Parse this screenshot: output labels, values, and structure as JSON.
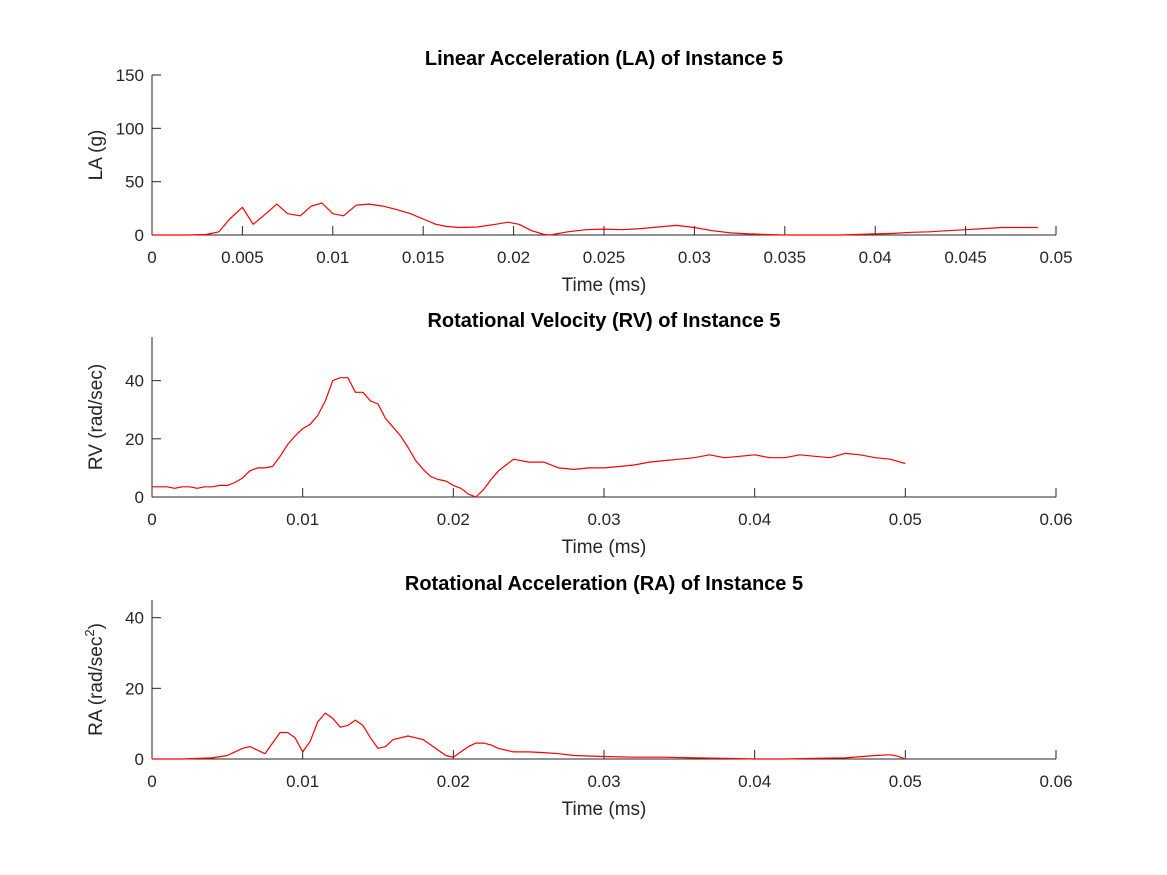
{
  "chart_data": [
    {
      "type": "line",
      "title": "Linear Acceleration (LA) of Instance 5",
      "xlabel": "Time (ms)",
      "ylabel": "LA (g)",
      "xlim": [
        0,
        0.05
      ],
      "ylim": [
        0,
        150
      ],
      "xticks": [
        0,
        0.005,
        0.01,
        0.015,
        0.02,
        0.025,
        0.03,
        0.035,
        0.04,
        0.045,
        0.05
      ],
      "xtick_labels": [
        "0",
        "0.005",
        "0.01",
        "0.015",
        "0.02",
        "0.025",
        "0.03",
        "0.035",
        "0.04",
        "0.045",
        "0.05"
      ],
      "yticks": [
        0,
        50,
        100,
        150
      ],
      "ytick_labels": [
        "0",
        "50",
        "100",
        "150"
      ],
      "color": "#ff0000",
      "series": [
        {
          "x": [
            0,
            0.002,
            0.003,
            0.0037,
            0.0043,
            0.005,
            0.0056,
            0.0063,
            0.0069,
            0.0075,
            0.0082,
            0.0088,
            0.0094,
            0.01,
            0.0106,
            0.0113,
            0.012,
            0.0128,
            0.0135,
            0.0143,
            0.015,
            0.0157,
            0.0163,
            0.017,
            0.018,
            0.019,
            0.0197,
            0.0203,
            0.021,
            0.0217,
            0.022,
            0.023,
            0.024,
            0.025,
            0.026,
            0.027,
            0.028,
            0.029,
            0.03,
            0.031,
            0.032,
            0.033,
            0.034,
            0.035,
            0.036,
            0.037,
            0.038,
            0.039,
            0.04,
            0.041,
            0.042,
            0.043,
            0.044,
            0.045,
            0.046,
            0.047,
            0.048,
            0.049
          ],
          "y": [
            0,
            0,
            0.5,
            3,
            15,
            26,
            10,
            20,
            29,
            20,
            18,
            27,
            30,
            20,
            18,
            28,
            29,
            27,
            24,
            20,
            15,
            10,
            8,
            7,
            7.5,
            10,
            12,
            10,
            4,
            0.5,
            0,
            3,
            5,
            5.5,
            5,
            6,
            7.5,
            9,
            7,
            4,
            2,
            1,
            0.5,
            0,
            0,
            0,
            0,
            0.5,
            1,
            1.5,
            2.5,
            3,
            4,
            5,
            6,
            7,
            7,
            7
          ]
        }
      ]
    },
    {
      "type": "line",
      "title": "Rotational Velocity (RV) of Instance 5",
      "xlabel": "Time (ms)",
      "ylabel": "RV (rad/sec)",
      "xlim": [
        0,
        0.06
      ],
      "ylim": [
        0,
        55
      ],
      "xticks": [
        0,
        0.01,
        0.02,
        0.03,
        0.04,
        0.05,
        0.06
      ],
      "xtick_labels": [
        "0",
        "0.01",
        "0.02",
        "0.03",
        "0.04",
        "0.05",
        "0.06"
      ],
      "yticks": [
        0,
        20,
        40
      ],
      "ytick_labels": [
        "0",
        "20",
        "40"
      ],
      "color": "#ff0000",
      "series": [
        {
          "x": [
            0,
            0.001,
            0.0015,
            0.002,
            0.0025,
            0.003,
            0.0035,
            0.004,
            0.0045,
            0.005,
            0.0055,
            0.006,
            0.0065,
            0.007,
            0.0075,
            0.008,
            0.0085,
            0.009,
            0.0095,
            0.01,
            0.0105,
            0.011,
            0.0115,
            0.012,
            0.0125,
            0.013,
            0.0135,
            0.014,
            0.0145,
            0.015,
            0.0155,
            0.016,
            0.0165,
            0.017,
            0.0175,
            0.018,
            0.0185,
            0.019,
            0.0195,
            0.02,
            0.0205,
            0.021,
            0.0215,
            0.022,
            0.0225,
            0.023,
            0.0235,
            0.024,
            0.025,
            0.026,
            0.027,
            0.028,
            0.029,
            0.03,
            0.031,
            0.032,
            0.033,
            0.034,
            0.035,
            0.036,
            0.037,
            0.038,
            0.039,
            0.04,
            0.041,
            0.042,
            0.043,
            0.044,
            0.045,
            0.046,
            0.047,
            0.048,
            0.049,
            0.05
          ],
          "y": [
            3.5,
            3.5,
            3,
            3.5,
            3.5,
            3,
            3.5,
            3.5,
            4,
            4,
            5,
            6.5,
            9,
            10,
            10,
            10.5,
            14,
            18,
            21,
            23.5,
            25,
            28,
            33,
            40,
            41,
            41,
            36,
            36,
            33,
            32,
            27,
            24,
            21,
            17,
            12.5,
            9.5,
            7,
            6,
            5.5,
            4,
            3,
            1,
            0,
            2.5,
            6,
            9,
            11,
            13,
            12,
            12,
            10,
            9.5,
            10,
            10,
            10.5,
            11,
            12,
            12.5,
            13,
            13.5,
            14.5,
            13.5,
            14,
            14.5,
            13.5,
            13.5,
            14.5,
            14,
            13.5,
            15,
            14.5,
            13.5,
            13,
            11.5
          ]
        }
      ]
    },
    {
      "type": "line",
      "title": "Rotational Acceleration (RA) of Instance 5",
      "xlabel": "Time (ms)",
      "ylabel": "RA (rad/sec",
      "ylabel_superscript": "2",
      "ylabel_suffix": ")",
      "xlim": [
        0,
        0.06
      ],
      "ylim": [
        0,
        45
      ],
      "xticks": [
        0,
        0.01,
        0.02,
        0.03,
        0.04,
        0.05,
        0.06
      ],
      "xtick_labels": [
        "0",
        "0.01",
        "0.02",
        "0.03",
        "0.04",
        "0.05",
        "0.06"
      ],
      "yticks": [
        0,
        20,
        40
      ],
      "ytick_labels": [
        "0",
        "20",
        "40"
      ],
      "color": "#ff0000",
      "series": [
        {
          "x": [
            0,
            0.002,
            0.004,
            0.005,
            0.0055,
            0.006,
            0.0065,
            0.007,
            0.0075,
            0.008,
            0.0085,
            0.009,
            0.0095,
            0.01,
            0.0105,
            0.011,
            0.0115,
            0.012,
            0.0125,
            0.013,
            0.0135,
            0.014,
            0.0145,
            0.015,
            0.0155,
            0.016,
            0.0165,
            0.017,
            0.0175,
            0.018,
            0.0185,
            0.019,
            0.0195,
            0.02,
            0.0205,
            0.021,
            0.0215,
            0.022,
            0.0225,
            0.023,
            0.024,
            0.025,
            0.026,
            0.027,
            0.028,
            0.03,
            0.032,
            0.034,
            0.036,
            0.038,
            0.04,
            0.042,
            0.044,
            0.046,
            0.048,
            0.049,
            0.0495,
            0.05
          ],
          "y": [
            0,
            0,
            0.3,
            1,
            2,
            3,
            3.5,
            2.5,
            1.5,
            4.5,
            7.5,
            7.5,
            6,
            2,
            5,
            10.5,
            13,
            11.5,
            9,
            9.5,
            11,
            9.5,
            6,
            3,
            3.5,
            5.5,
            6,
            6.5,
            6,
            5.5,
            4,
            2.5,
            1,
            0.5,
            2,
            3.5,
            4.5,
            4.5,
            4,
            3,
            2,
            2,
            1.8,
            1.5,
            1,
            0.7,
            0.5,
            0.5,
            0.3,
            0.2,
            0,
            0,
            0.2,
            0.3,
            1,
            1.2,
            0.8,
            0
          ]
        }
      ]
    }
  ]
}
